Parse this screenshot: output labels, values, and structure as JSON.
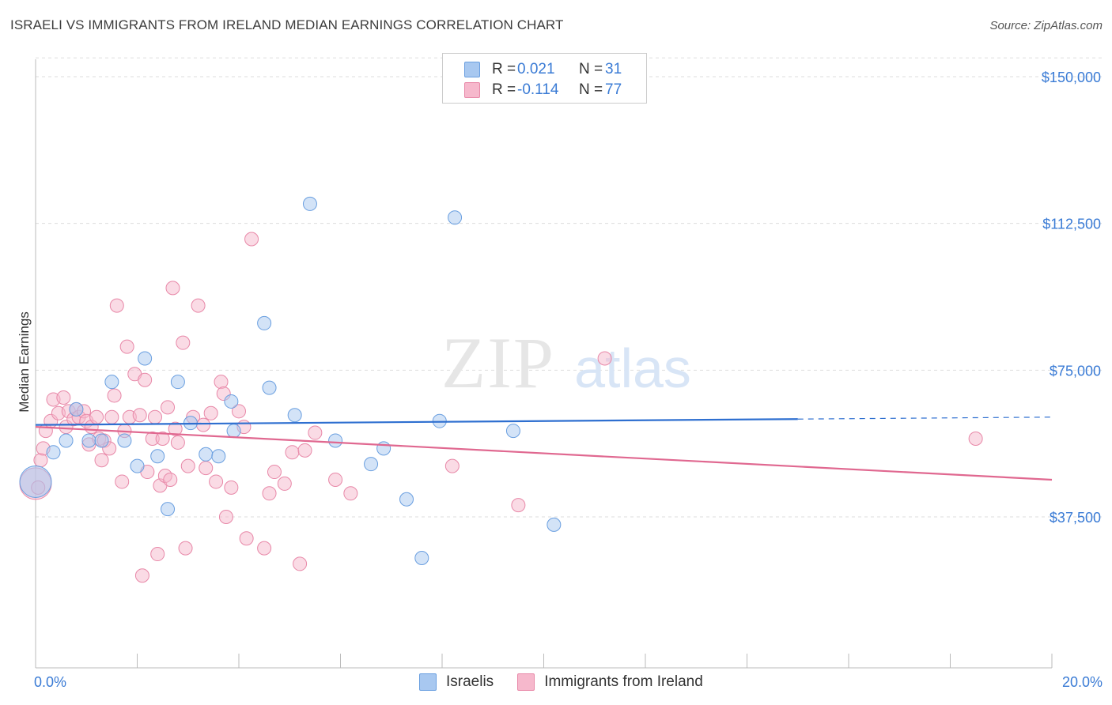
{
  "title": "ISRAELI VS IMMIGRANTS FROM IRELAND MEDIAN EARNINGS CORRELATION CHART",
  "source": "Source: ZipAtlas.com",
  "watermark": {
    "zip": "ZIP",
    "atlas": "atlas"
  },
  "legend": {
    "rows": [
      {
        "r_label": "R =",
        "r_value": "0.021",
        "n_label": "N =",
        "n_value": "31"
      },
      {
        "r_label": "R =",
        "r_value": "-0.114",
        "n_label": "N =",
        "n_value": "77"
      }
    ]
  },
  "bottom_legend": [
    {
      "label": "Israelis"
    },
    {
      "label": "Immigrants from Ireland"
    }
  ],
  "colors": {
    "israelis_fill": "#a8c8f0",
    "israelis_stroke": "#6a9fe0",
    "israelis_line": "#2e6fd0",
    "ireland_fill": "#f6b8cc",
    "ireland_stroke": "#e888a8",
    "ireland_line": "#e06890",
    "tick_text": "#3a7bd5",
    "grid": "#dddddd"
  },
  "chart_data": {
    "type": "scatter",
    "title": "ISRAELI VS IMMIGRANTS FROM IRELAND MEDIAN EARNINGS CORRELATION CHART",
    "xlabel": "",
    "ylabel": "Median Earnings",
    "xlim": [
      0,
      20
    ],
    "ylim": [
      0,
      155000
    ],
    "x_tick_labels": [
      {
        "value": 0,
        "label": "0.0%"
      },
      {
        "value": 20,
        "label": "20.0%"
      }
    ],
    "y_ticks": [
      {
        "value": 150000,
        "label": "$150,000"
      },
      {
        "value": 112500,
        "label": "$112,500"
      },
      {
        "value": 75000,
        "label": "$75,000"
      },
      {
        "value": 37500,
        "label": "$37,500"
      }
    ],
    "grid": true,
    "series": [
      {
        "name": "Israelis",
        "points": [
          [
            0.0,
            46500,
            "large"
          ],
          [
            0.35,
            54000
          ],
          [
            0.6,
            57000
          ],
          [
            0.8,
            65000
          ],
          [
            1.05,
            57000
          ],
          [
            1.3,
            57000
          ],
          [
            1.5,
            72000
          ],
          [
            1.75,
            57000
          ],
          [
            2.0,
            50500
          ],
          [
            2.15,
            78000
          ],
          [
            2.4,
            53000
          ],
          [
            2.6,
            39500
          ],
          [
            2.8,
            72000
          ],
          [
            3.05,
            61500
          ],
          [
            3.35,
            53500
          ],
          [
            3.6,
            53000
          ],
          [
            3.85,
            67000
          ],
          [
            3.9,
            59500
          ],
          [
            4.5,
            87000
          ],
          [
            4.6,
            70500
          ],
          [
            5.1,
            63500
          ],
          [
            5.4,
            117500
          ],
          [
            5.9,
            57000
          ],
          [
            6.6,
            51000
          ],
          [
            6.85,
            55000
          ],
          [
            7.3,
            42000
          ],
          [
            7.6,
            27000
          ],
          [
            7.95,
            62000
          ],
          [
            8.25,
            114000
          ],
          [
            9.4,
            59500
          ],
          [
            10.2,
            35500
          ]
        ],
        "trend": {
          "x": [
            0,
            15
          ],
          "y": [
            61000,
            62500
          ]
        },
        "trend_dashed": {
          "x": [
            15,
            20
          ],
          "y": [
            62500,
            63000
          ]
        }
      },
      {
        "name": "Immigrants from Ireland",
        "points": [
          [
            0.0,
            46000,
            "large"
          ],
          [
            0.1,
            52000
          ],
          [
            0.15,
            55000
          ],
          [
            0.2,
            59500
          ],
          [
            0.3,
            62000
          ],
          [
            0.35,
            67500
          ],
          [
            0.45,
            64000
          ],
          [
            0.55,
            68000
          ],
          [
            0.6,
            60500
          ],
          [
            0.65,
            64500
          ],
          [
            0.75,
            62500
          ],
          [
            0.8,
            65000
          ],
          [
            0.85,
            63000
          ],
          [
            0.95,
            64500
          ],
          [
            1.0,
            62000
          ],
          [
            1.05,
            56000
          ],
          [
            1.1,
            60500
          ],
          [
            1.2,
            63000
          ],
          [
            1.25,
            57500
          ],
          [
            1.3,
            52000
          ],
          [
            1.35,
            57000
          ],
          [
            1.45,
            55000
          ],
          [
            1.5,
            63000
          ],
          [
            1.55,
            68500
          ],
          [
            1.6,
            91500
          ],
          [
            1.7,
            46500
          ],
          [
            1.75,
            59500
          ],
          [
            1.8,
            81000
          ],
          [
            1.85,
            63000
          ],
          [
            1.95,
            74000
          ],
          [
            2.05,
            63500
          ],
          [
            2.1,
            22500
          ],
          [
            2.15,
            72500
          ],
          [
            2.2,
            49000
          ],
          [
            2.3,
            57500
          ],
          [
            2.35,
            63000
          ],
          [
            2.4,
            28000
          ],
          [
            2.45,
            45500
          ],
          [
            2.5,
            57500
          ],
          [
            2.55,
            48000
          ],
          [
            2.6,
            65500
          ],
          [
            2.65,
            47000
          ],
          [
            2.7,
            96000
          ],
          [
            2.75,
            60000
          ],
          [
            2.8,
            56500
          ],
          [
            2.9,
            82000
          ],
          [
            2.95,
            29500
          ],
          [
            3.0,
            50500
          ],
          [
            3.1,
            63000
          ],
          [
            3.2,
            91500
          ],
          [
            3.3,
            61000
          ],
          [
            3.35,
            50000
          ],
          [
            3.45,
            64000
          ],
          [
            3.55,
            46500
          ],
          [
            3.65,
            72000
          ],
          [
            3.7,
            69000
          ],
          [
            3.75,
            37500
          ],
          [
            3.85,
            45000
          ],
          [
            4.0,
            64500
          ],
          [
            4.1,
            60500
          ],
          [
            4.15,
            32000
          ],
          [
            4.25,
            108500
          ],
          [
            4.5,
            29500
          ],
          [
            4.6,
            43500
          ],
          [
            4.7,
            49000
          ],
          [
            4.9,
            46000
          ],
          [
            5.05,
            54000
          ],
          [
            5.2,
            25500
          ],
          [
            5.3,
            54500
          ],
          [
            5.5,
            59000
          ],
          [
            5.9,
            47000
          ],
          [
            6.2,
            43500
          ],
          [
            8.2,
            50500
          ],
          [
            9.5,
            40500
          ],
          [
            11.2,
            78000
          ],
          [
            18.5,
            57500
          ],
          [
            0.05,
            45000
          ]
        ],
        "trend": {
          "x": [
            0,
            20
          ],
          "y": [
            60500,
            47000
          ]
        }
      }
    ]
  }
}
